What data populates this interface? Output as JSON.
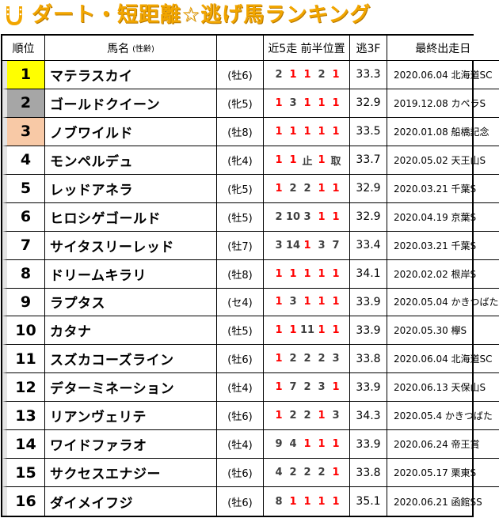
{
  "title": "ダート・短距離☆逃げ馬ランキング",
  "colors": {
    "title": "#f2a600",
    "rank1": "#ffff00",
    "rank2": "#a6a6a6",
    "rank3": "#f8c9a6",
    "highlight_pos": "#ff0000"
  },
  "headers": {
    "rank": "順位",
    "name": "馬名",
    "name_sub": "(性齢)",
    "positions": "近5走 前半位置",
    "time": "逃3F",
    "last_race": "最終出走日"
  },
  "rows": [
    {
      "rank": "1",
      "name": "マテラスカイ",
      "sex_age": "(牡6)",
      "positions": [
        "2",
        "1",
        "1",
        "2",
        "1"
      ],
      "time": "33.3",
      "last_race": "2020.06.04 北海道SC"
    },
    {
      "rank": "2",
      "name": "ゴールドクイーン",
      "sex_age": "(牝5)",
      "positions": [
        "1",
        "3",
        "1",
        "1",
        "1"
      ],
      "time": "32.9",
      "last_race": "2019.12.08 カペラS"
    },
    {
      "rank": "3",
      "name": "ノブワイルド",
      "sex_age": "(牡8)",
      "positions": [
        "1",
        "1",
        "1",
        "1",
        "1"
      ],
      "time": "33.5",
      "last_race": "2020.01.08 船橋記念"
    },
    {
      "rank": "4",
      "name": "モンペルデュ",
      "sex_age": "(牝4)",
      "positions": [
        "1",
        "1",
        "止",
        "1",
        "取"
      ],
      "time": "33.7",
      "last_race": "2020.05.02 天王山S"
    },
    {
      "rank": "5",
      "name": "レッドアネラ",
      "sex_age": "(牝5)",
      "positions": [
        "1",
        "2",
        "2",
        "1",
        "1"
      ],
      "time": "32.9",
      "last_race": "2020.03.21 千葉S"
    },
    {
      "rank": "6",
      "name": "ヒロシゲゴールド",
      "sex_age": "(牡5)",
      "positions": [
        "2",
        "10",
        "3",
        "1",
        "1"
      ],
      "time": "32.9",
      "last_race": "2020.04.19 京葉S"
    },
    {
      "rank": "7",
      "name": "サイタスリーレッド",
      "sex_age": "(牡7)",
      "positions": [
        "3",
        "14",
        "1",
        "3",
        "7"
      ],
      "time": "33.4",
      "last_race": "2020.03.21 千葉S"
    },
    {
      "rank": "8",
      "name": "ドリームキラリ",
      "sex_age": "(牡8)",
      "positions": [
        "1",
        "1",
        "1",
        "1",
        "1"
      ],
      "time": "34.1",
      "last_race": "2020.02.02 根岸S"
    },
    {
      "rank": "9",
      "name": "ラプタス",
      "sex_age": "(セ4)",
      "positions": [
        "1",
        "3",
        "1",
        "1",
        "1"
      ],
      "time": "33.9",
      "last_race": "2020.05.04 かきつばた"
    },
    {
      "rank": "10",
      "name": "カタナ",
      "sex_age": "(牡5)",
      "positions": [
        "1",
        "1",
        "11",
        "1",
        "1"
      ],
      "time": "33.9",
      "last_race": "2020.05.30 欅S"
    },
    {
      "rank": "11",
      "name": "スズカコーズライン",
      "sex_age": "(牡6)",
      "positions": [
        "1",
        "2",
        "2",
        "2",
        "3"
      ],
      "time": "33.8",
      "last_race": "2020.06.04 北海道SC"
    },
    {
      "rank": "12",
      "name": "デターミネーション",
      "sex_age": "(牡4)",
      "positions": [
        "1",
        "7",
        "2",
        "3",
        "1"
      ],
      "time": "33.9",
      "last_race": "2020.06.13 天保山S"
    },
    {
      "rank": "13",
      "name": "リアンヴェリテ",
      "sex_age": "(牡6)",
      "positions": [
        "1",
        "2",
        "2",
        "1",
        "3"
      ],
      "time": "34.3",
      "last_race": "2020.05.4 かきつばた"
    },
    {
      "rank": "14",
      "name": "ワイドファラオ",
      "sex_age": "(牡4)",
      "positions": [
        "9",
        "4",
        "1",
        "1",
        "1"
      ],
      "time": "33.9",
      "last_race": "2020.06.24 帝王賞"
    },
    {
      "rank": "15",
      "name": "サクセスエナジー",
      "sex_age": "(牡6)",
      "positions": [
        "4",
        "2",
        "2",
        "2",
        "1"
      ],
      "time": "33.8",
      "last_race": "2020.05.17 栗東S"
    },
    {
      "rank": "16",
      "name": "ダイメイフジ",
      "sex_age": "(牡6)",
      "positions": [
        "8",
        "1",
        "1",
        "1",
        "1"
      ],
      "time": "35.1",
      "last_race": "2020.06.21 函館SS"
    }
  ]
}
